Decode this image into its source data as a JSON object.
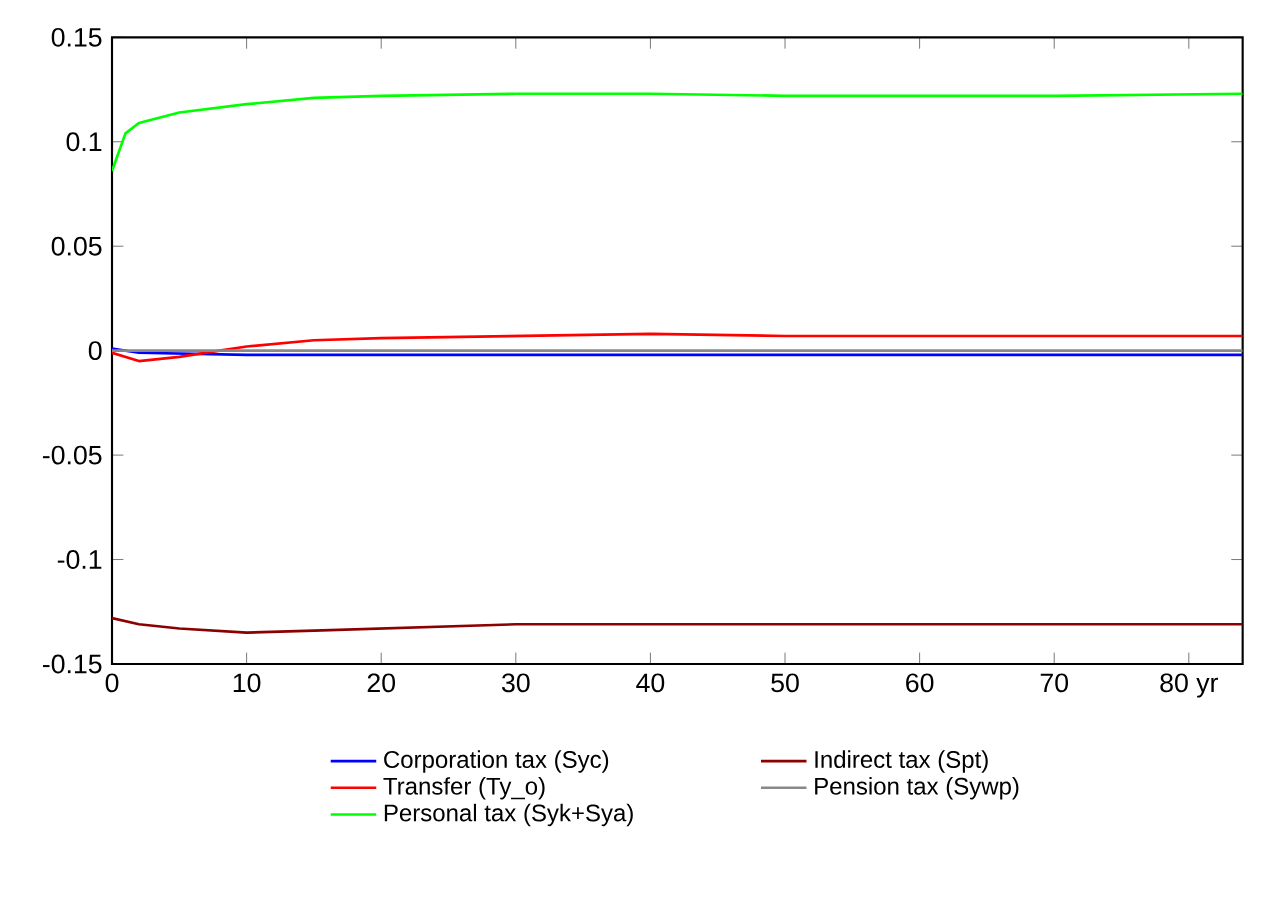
{
  "chart_data": {
    "type": "line",
    "xlim": [
      0,
      84
    ],
    "ylim": [
      -0.15,
      0.15
    ],
    "xticks": [
      0,
      10,
      20,
      30,
      40,
      50,
      60,
      70,
      {
        "value": 80,
        "label": "80 yr"
      }
    ],
    "yticks": [
      -0.15,
      -0.1,
      -0.05,
      0,
      0.05,
      0.1,
      0.15
    ],
    "legend": "bottom",
    "grid": false,
    "marker": "none",
    "line_style": "solid",
    "series": [
      {
        "name": "Corporation tax (Syc)",
        "color": "#0000ff",
        "x": [
          0,
          2,
          10,
          84
        ],
        "values": [
          0.001,
          -0.001,
          -0.002,
          -0.002
        ]
      },
      {
        "name": "Indirect tax (Spt)",
        "color": "#8b0000",
        "x": [
          0,
          2,
          5,
          10,
          15,
          20,
          25,
          30,
          84
        ],
        "values": [
          -0.128,
          -0.131,
          -0.133,
          -0.135,
          -0.134,
          -0.133,
          -0.132,
          -0.131,
          -0.131
        ]
      },
      {
        "name": "Transfer (Ty_o)",
        "color": "#ff0000",
        "x": [
          0,
          2,
          5,
          8,
          10,
          15,
          20,
          30,
          40,
          50,
          60,
          70,
          80,
          84
        ],
        "values": [
          -0.001,
          -0.005,
          -0.003,
          0,
          0.002,
          0.005,
          0.006,
          0.007,
          0.008,
          0.007,
          0.007,
          0.007,
          0.007,
          0.007
        ]
      },
      {
        "name": "Pension tax (Sywp)",
        "color": "#888888",
        "x": [
          0,
          84
        ],
        "values": [
          0,
          0
        ]
      },
      {
        "name": "Personal tax (Syk+Sya)",
        "color": "#00ff00",
        "x": [
          0,
          1,
          2,
          5,
          10,
          15,
          20,
          30,
          40,
          50,
          60,
          70,
          84
        ],
        "values": [
          0.086,
          0.104,
          0.109,
          0.114,
          0.118,
          0.121,
          0.122,
          0.123,
          0.123,
          0.122,
          0.122,
          0.122,
          0.123
        ]
      }
    ]
  }
}
